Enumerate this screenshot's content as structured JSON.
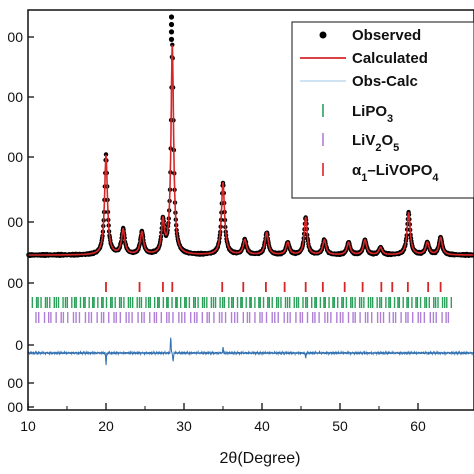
{
  "chart_data": {
    "type": "line",
    "xlabel": "2θ(Degree)",
    "ylabel": "",
    "title": "",
    "xlim": [
      10,
      65
    ],
    "x_ticks": [
      10,
      20,
      30,
      40,
      50,
      60
    ],
    "x_tick_labels": [
      "10",
      "20",
      "30",
      "40",
      "50",
      "60"
    ],
    "y_tick_labels": [
      "00",
      "00",
      "00",
      "00",
      "00",
      "0",
      "00",
      "00"
    ],
    "grid": false,
    "legend_position": "top-right",
    "legend": [
      {
        "label": "Observed",
        "style": "dot",
        "color": "#000000"
      },
      {
        "label": "Calculated",
        "style": "line",
        "color": "#d62728"
      },
      {
        "label": "Obs-Calc",
        "style": "line",
        "color": "#c9dff0"
      },
      {
        "label_parts": [
          "LiPO",
          "3",
          ""
        ],
        "style": "tick",
        "color": "#2ca05a"
      },
      {
        "label_parts": [
          "LiV",
          "2",
          "O",
          "5",
          ""
        ],
        "style": "tick",
        "color": "#b07fd6"
      },
      {
        "label_parts": [
          "α",
          "1",
          "–LiVOPO",
          "4",
          ""
        ],
        "style": "tick",
        "color": "#d62728"
      }
    ],
    "baseline_level": 0.06,
    "observed_extra_points": [
      28.4,
      28.4,
      28.4,
      28.4
    ],
    "peaks": [
      {
        "x": 20.0,
        "height": 0.4,
        "width": 0.22
      },
      {
        "x": 22.2,
        "height": 0.1,
        "width": 0.25
      },
      {
        "x": 24.6,
        "height": 0.09,
        "width": 0.25
      },
      {
        "x": 27.3,
        "height": 0.13,
        "width": 0.22
      },
      {
        "x": 28.5,
        "height": 0.84,
        "width": 0.2
      },
      {
        "x": 35.0,
        "height": 0.29,
        "width": 0.24
      },
      {
        "x": 37.8,
        "height": 0.06,
        "width": 0.25
      },
      {
        "x": 40.6,
        "height": 0.09,
        "width": 0.25
      },
      {
        "x": 43.3,
        "height": 0.05,
        "width": 0.25
      },
      {
        "x": 45.6,
        "height": 0.15,
        "width": 0.22
      },
      {
        "x": 48.0,
        "height": 0.06,
        "width": 0.25
      },
      {
        "x": 51.1,
        "height": 0.05,
        "width": 0.25
      },
      {
        "x": 53.2,
        "height": 0.06,
        "width": 0.25
      },
      {
        "x": 55.2,
        "height": 0.03,
        "width": 0.25
      },
      {
        "x": 58.8,
        "height": 0.17,
        "width": 0.24
      },
      {
        "x": 61.2,
        "height": 0.05,
        "width": 0.25
      },
      {
        "x": 62.9,
        "height": 0.07,
        "width": 0.25
      }
    ],
    "reflections": {
      "alpha1_LiVOPO4": [
        20.0,
        24.3,
        27.3,
        28.5,
        34.9,
        37.6,
        40.5,
        42.9,
        45.6,
        47.8,
        50.6,
        52.9,
        55.3,
        56.7,
        58.7,
        61.3,
        62.9
      ],
      "LiPO3": {
        "start": 10.6,
        "end": 64.5,
        "step": 0.38
      },
      "LiV2O5": {
        "start": 11.0,
        "end": 64.5,
        "step": 0.52
      }
    },
    "difference_spikes": [
      {
        "x": 20.0,
        "amp": -0.055
      },
      {
        "x": 28.3,
        "amp": 0.075
      },
      {
        "x": 28.6,
        "amp": -0.04
      },
      {
        "x": 35.0,
        "amp": 0.025
      },
      {
        "x": 45.6,
        "amp": -0.02
      }
    ]
  }
}
